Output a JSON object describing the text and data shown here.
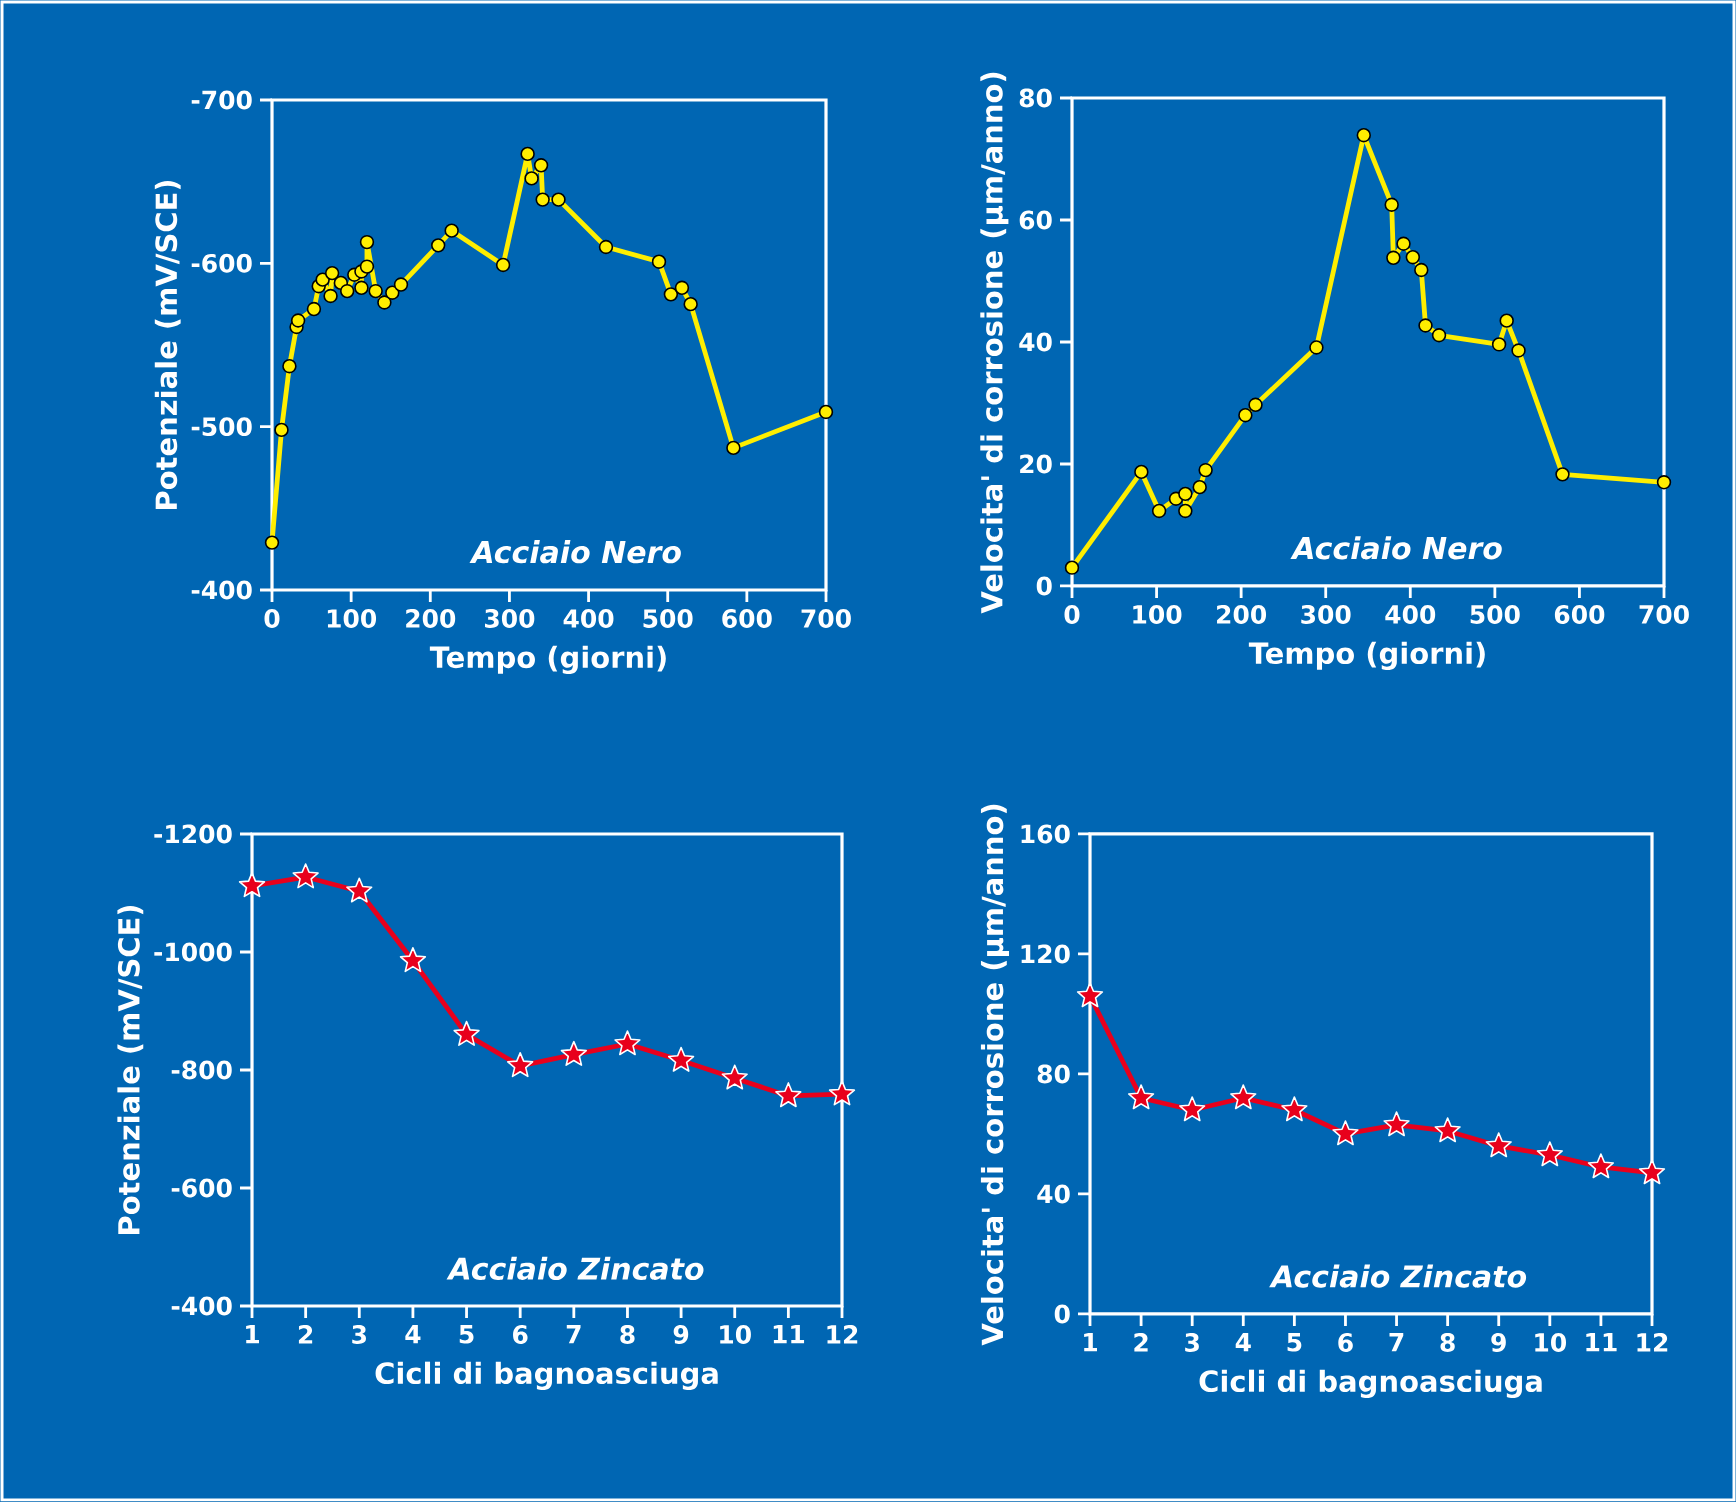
{
  "chart_data": [
    {
      "type": "line",
      "xlabel": "Tempo (giorni)",
      "ylabel": "Potenziale (mV/SCE)",
      "annotations": [
        "Acciaio Nero"
      ],
      "marker": "circle",
      "line_style": "solid",
      "xlim": [
        0,
        700
      ],
      "xticks": [
        0,
        100,
        200,
        300,
        400,
        500,
        600,
        700
      ],
      "ylim": [
        -400,
        -700
      ],
      "yticks": [
        -400,
        -500,
        -600,
        -700
      ],
      "series": [
        {
          "color": "#ffee00",
          "x": [
            0,
            12,
            22,
            31,
            33,
            53,
            59,
            64,
            74,
            76,
            87,
            95,
            104,
            113,
            113,
            120,
            120,
            131,
            142,
            152,
            163,
            210,
            227,
            292,
            323,
            328,
            340,
            342,
            362,
            422,
            489,
            504,
            518,
            529,
            583,
            700
          ],
          "values": [
            -429,
            -498,
            -537,
            -561,
            -565,
            -572,
            -586,
            -590,
            -580,
            -594,
            -588,
            -583,
            -593,
            -585,
            -595,
            -598,
            -613,
            -583,
            -576,
            -582,
            -587,
            -611,
            -620,
            -599,
            -667,
            -652,
            -660,
            -639,
            -639,
            -610,
            -601,
            -581,
            -585,
            -575,
            -487,
            -509
          ]
        }
      ]
    },
    {
      "type": "line",
      "xlabel": "Tempo (giorni)",
      "ylabel": "Velocita' di corrosione (μm/anno)",
      "annotations": [
        "Acciaio Nero"
      ],
      "marker": "circle",
      "line_style": "solid",
      "xlim": [
        0,
        700
      ],
      "xticks": [
        0,
        100,
        200,
        300,
        400,
        500,
        600,
        700
      ],
      "ylim": [
        0,
        80
      ],
      "yticks": [
        0,
        20,
        40,
        60,
        80
      ],
      "series": [
        {
          "color": "#ffee00",
          "x": [
            0,
            82,
            103,
            123,
            134,
            134,
            151,
            158,
            205,
            217,
            289,
            345,
            378,
            380,
            392,
            403,
            413,
            418,
            434,
            505,
            514,
            528,
            580,
            700
          ],
          "values": [
            3,
            18.7,
            12.3,
            14.3,
            15.1,
            12.3,
            16.2,
            19,
            28,
            29.7,
            39.1,
            73.9,
            62.5,
            53.8,
            56.1,
            53.9,
            51.8,
            42.7,
            41.1,
            39.6,
            43.5,
            38.6,
            18.3,
            17
          ]
        }
      ]
    },
    {
      "type": "line",
      "xlabel": "Cicli di bagnoasciuga",
      "ylabel": "Potenziale (mV/SCE)",
      "annotations": [
        "Acciaio Zincato"
      ],
      "marker": "star",
      "line_style": "solid",
      "xlim": [
        1,
        12
      ],
      "xticks": [
        1,
        2,
        3,
        4,
        5,
        6,
        7,
        8,
        9,
        10,
        11,
        12
      ],
      "ylim": [
        -400,
        -1200
      ],
      "yticks": [
        -400,
        -600,
        -800,
        -1000,
        -1200
      ],
      "series": [
        {
          "color": "#e8001c",
          "x": [
            1,
            2,
            3,
            4,
            5,
            6,
            7,
            8,
            9,
            10,
            11,
            12
          ],
          "values": [
            -1112,
            -1127,
            -1103,
            -985,
            -860,
            -807,
            -826,
            -844,
            -816,
            -786,
            -756,
            -759
          ]
        }
      ]
    },
    {
      "type": "line",
      "xlabel": "Cicli di bagnoasciuga",
      "ylabel": "Velocita' di corrosione (μm/anno)",
      "annotations": [
        "Acciaio Zincato"
      ],
      "marker": "star",
      "line_style": "solid",
      "xlim": [
        1,
        12
      ],
      "xticks": [
        1,
        2,
        3,
        4,
        5,
        6,
        7,
        8,
        9,
        10,
        11,
        12
      ],
      "ylim": [
        0,
        160
      ],
      "yticks": [
        0,
        40,
        80,
        120,
        160
      ],
      "series": [
        {
          "color": "#e8001c",
          "x": [
            1,
            2,
            3,
            4,
            5,
            6,
            7,
            8,
            9,
            10,
            11,
            12
          ],
          "values": [
            106,
            72,
            68,
            72,
            68,
            60,
            63,
            61,
            56,
            53,
            49,
            47
          ]
        }
      ]
    }
  ]
}
